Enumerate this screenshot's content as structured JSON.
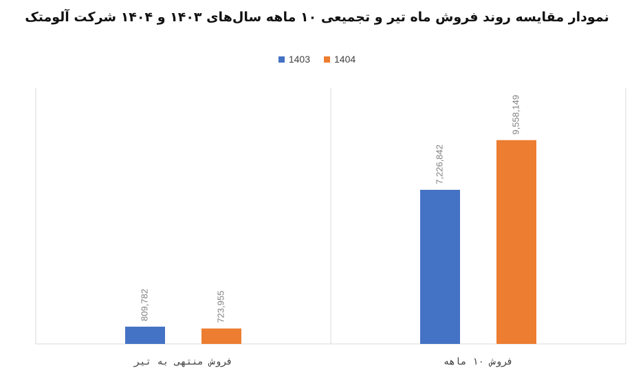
{
  "chart_data": {
    "type": "bar",
    "title": "نمودار مقایسه روند فروش ماه تیر و تجمیعی ۱۰ ماهه سال‌های ۱۴۰۳ و ۱۴۰۴ شرکت آلومتک",
    "categories": [
      "فروش منتهی به تیر",
      "فروش ۱۰ ماهه"
    ],
    "series": [
      {
        "name": "1403",
        "color": "#4472C4",
        "values": [
          809782,
          7226842
        ],
        "labels": [
          "809,782",
          "7,226,842"
        ]
      },
      {
        "name": "1404",
        "color": "#ED7D31",
        "values": [
          723955,
          9558149
        ],
        "labels": [
          "723,955",
          "9,558,149"
        ]
      }
    ],
    "ylim": [
      0,
      12000000
    ],
    "legend_position": "top",
    "grid": false
  }
}
